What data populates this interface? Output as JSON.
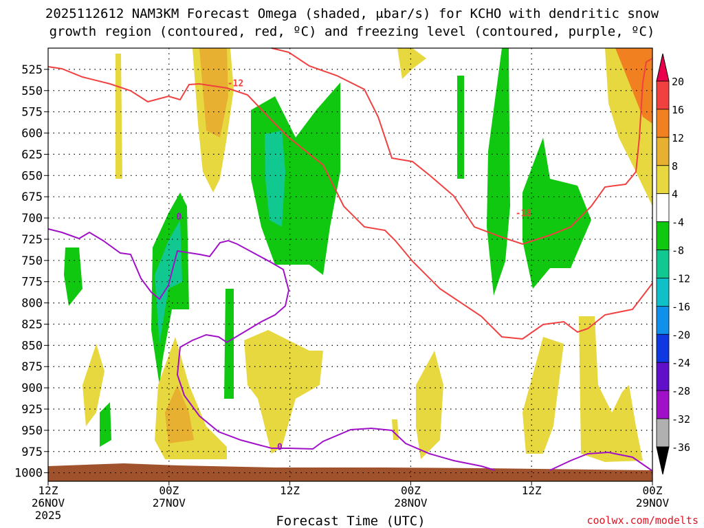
{
  "chart_data": {
    "type": "heatmap",
    "title_line1": "2025112612 NAM3KM Forecast Omega (shaded, μbar/s) for KCHO with dendritic snow",
    "title_line2": "growth region (contoured, red, ºC) and freezing level (contoured, purple, ºC)",
    "xlabel": "Forecast Time (UTC)",
    "watermark": "coolwx.com/modelts",
    "y_pressure_range": [
      500,
      1010
    ],
    "y_ticks": [
      "525",
      "550",
      "575",
      "600",
      "625",
      "650",
      "675",
      "700",
      "725",
      "750",
      "775",
      "800",
      "825",
      "850",
      "875",
      "900",
      "925",
      "950",
      "975",
      "1000"
    ],
    "x_hours_range": [
      0,
      60
    ],
    "x_ticks": [
      {
        "hour": 0,
        "line1": "12Z",
        "line2": "26NOV",
        "line3": "2025"
      },
      {
        "hour": 12,
        "line1": "00Z",
        "line2": "27NOV",
        "line3": ""
      },
      {
        "hour": 24,
        "line1": "12Z",
        "line2": "",
        "line3": ""
      },
      {
        "hour": 36,
        "line1": "00Z",
        "line2": "28NOV",
        "line3": ""
      },
      {
        "hour": 48,
        "line1": "12Z",
        "line2": "",
        "line3": ""
      },
      {
        "hour": 60,
        "line1": "00Z",
        "line2": "29NOV",
        "line3": ""
      }
    ],
    "colorbar": {
      "levels": [
        "20",
        "16",
        "12",
        "8",
        "4",
        "-4",
        "-8",
        "-12",
        "-16",
        "-20",
        "-24",
        "-28",
        "-32",
        "-36"
      ],
      "colors": [
        "#e8004c",
        "#f04040",
        "#f08020",
        "#e8b030",
        "#e8d840",
        "#ffffff",
        "#10c810",
        "#10c890",
        "#10c0c8",
        "#1090e8",
        "#1038e0",
        "#6010c8",
        "#a010c8",
        "#b0b0b0",
        "#000000"
      ]
    },
    "contour_labels": [
      {
        "text": "-12",
        "color": "#f04040",
        "hour": 18.6,
        "pressure": 545
      },
      {
        "text": "-18",
        "color": "#f04040",
        "hour": 47.2,
        "pressure": 698
      },
      {
        "text": "0",
        "color": "#a010c8",
        "hour": 13.0,
        "pressure": 702
      },
      {
        "text": "0",
        "color": "#a010c8",
        "hour": 23.0,
        "pressure": 973
      }
    ]
  }
}
